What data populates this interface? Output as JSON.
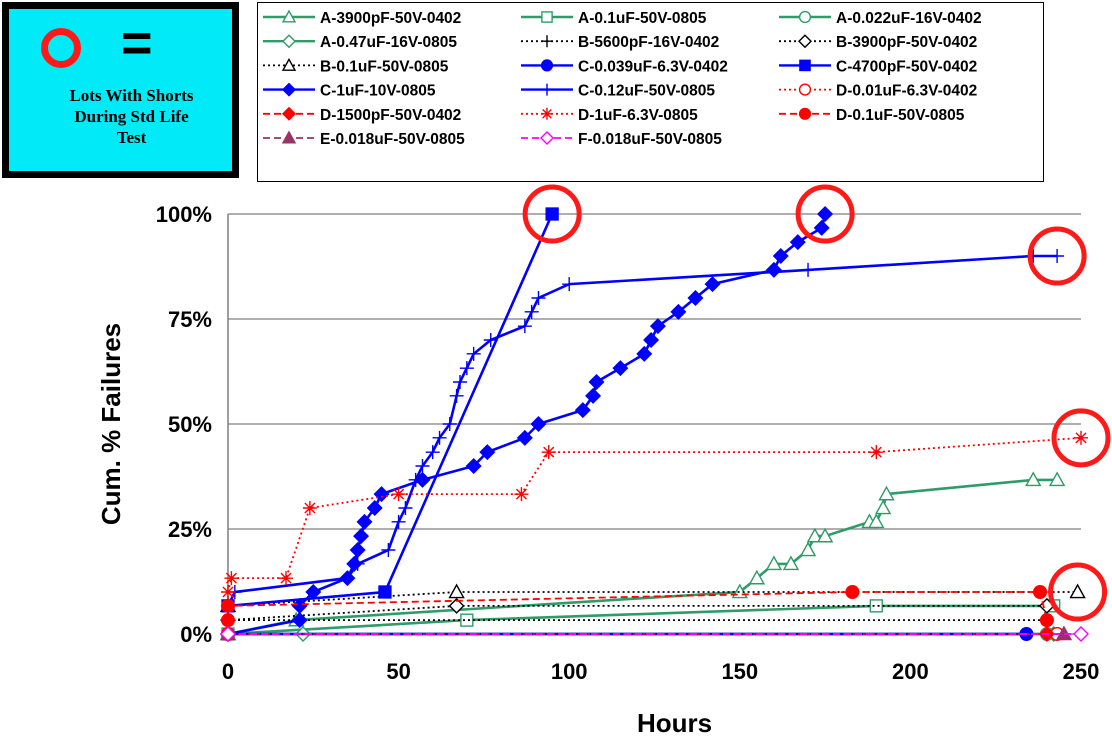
{
  "key": {
    "symbol": "circle-outline",
    "equals": "=",
    "text": "Lots With Shorts During Std Life Test",
    "symbol_color": "#ff1a1a",
    "bg_color": "#00eaf7"
  },
  "chart_data": {
    "type": "line",
    "xlabel": "Hours",
    "ylabel": "Cum. % Failures",
    "xlim": [
      0,
      250
    ],
    "ylim": [
      0,
      100
    ],
    "xticks": [
      "0",
      "50",
      "100",
      "150",
      "200",
      "250"
    ],
    "yticks": [
      "0%",
      "25%",
      "50%",
      "75%",
      "100%"
    ],
    "grid": "horizontal",
    "legend_position": "top",
    "highlight_circles": [
      {
        "x": 95,
        "y": 100
      },
      {
        "x": 175,
        "y": 100
      },
      {
        "x": 243,
        "y": 90
      },
      {
        "x": 250,
        "y": 46.7
      },
      {
        "x": 249,
        "y": 10
      }
    ],
    "series": [
      {
        "name": "A-3900pF-50V-0402",
        "color": "#2e9c68",
        "dash": "solid",
        "marker": "triangle-open",
        "points": [
          [
            0,
            0
          ],
          [
            20,
            3.3
          ],
          [
            150,
            10
          ],
          [
            155,
            13.3
          ],
          [
            160,
            16.7
          ],
          [
            165,
            16.7
          ],
          [
            170,
            20
          ],
          [
            172,
            23.3
          ],
          [
            175,
            23.3
          ],
          [
            188,
            26.7
          ],
          [
            190,
            26.7
          ],
          [
            192,
            30
          ],
          [
            193,
            33.3
          ],
          [
            236,
            36.7
          ],
          [
            243,
            36.7
          ]
        ]
      },
      {
        "name": "A-0.1uF-50V-0805",
        "color": "#2e9c68",
        "dash": "solid",
        "marker": "square-open",
        "points": [
          [
            0,
            0
          ],
          [
            70,
            3.3
          ],
          [
            190,
            6.7
          ],
          [
            242,
            6.7
          ]
        ]
      },
      {
        "name": "A-0.022uF-16V-0402",
        "color": "#2e9c68",
        "dash": "solid",
        "marker": "circle-open",
        "points": [
          [
            0,
            0
          ],
          [
            240,
            0
          ]
        ]
      },
      {
        "name": "A-0.47uF-16V-0805",
        "color": "#2e9c68",
        "dash": "solid",
        "marker": "diamond-open",
        "points": [
          [
            0,
            0
          ],
          [
            22,
            0
          ],
          [
            242,
            0
          ]
        ]
      },
      {
        "name": "B-5600pF-16V-0402",
        "color": "#000000",
        "dash": "dotted",
        "marker": "plus",
        "points": [
          [
            0,
            3.3
          ],
          [
            240,
            3.3
          ]
        ]
      },
      {
        "name": "B-3900pF-50V-0402",
        "color": "#000000",
        "dash": "dotted",
        "marker": "diamond-open",
        "points": [
          [
            0,
            3.3
          ],
          [
            67,
            6.7
          ],
          [
            240,
            6.7
          ]
        ]
      },
      {
        "name": "B-0.1uF-50V-0805",
        "color": "#000000",
        "dash": "dotted",
        "marker": "triangle-open",
        "points": [
          [
            0,
            6.7
          ],
          [
            67,
            10
          ],
          [
            249,
            10
          ]
        ]
      },
      {
        "name": "C-0.039uF-6.3V-0402",
        "color": "#0000ff",
        "dash": "solid",
        "marker": "circle",
        "points": [
          [
            0,
            0
          ],
          [
            234,
            0
          ]
        ]
      },
      {
        "name": "C-4700pF-50V-0402",
        "color": "#0000ff",
        "dash": "solid",
        "marker": "square",
        "points": [
          [
            0,
            6.7
          ],
          [
            46,
            10
          ],
          [
            95,
            100
          ]
        ]
      },
      {
        "name": "C-1uF-10V-0805",
        "color": "#0000ff",
        "dash": "solid",
        "marker": "diamond",
        "points": [
          [
            0,
            0
          ],
          [
            21,
            3.3
          ],
          [
            21,
            6.7
          ],
          [
            25,
            10
          ],
          [
            35,
            13.3
          ],
          [
            37,
            16.7
          ],
          [
            38,
            20
          ],
          [
            39,
            23.3
          ],
          [
            40,
            26.7
          ],
          [
            43,
            30
          ],
          [
            45,
            33.3
          ],
          [
            57,
            36.7
          ],
          [
            72,
            40
          ],
          [
            76,
            43.3
          ],
          [
            87,
            46.7
          ],
          [
            91,
            50
          ],
          [
            104,
            53.3
          ],
          [
            107,
            56.7
          ],
          [
            108,
            60
          ],
          [
            115,
            63.3
          ],
          [
            122,
            66.7
          ],
          [
            124,
            70
          ],
          [
            126,
            73.3
          ],
          [
            132,
            76.7
          ],
          [
            137,
            80
          ],
          [
            142,
            83.3
          ],
          [
            160,
            86.7
          ],
          [
            162,
            90
          ],
          [
            167,
            93.3
          ],
          [
            174,
            96.7
          ],
          [
            175,
            100
          ]
        ]
      },
      {
        "name": "C-0.12uF-50V-0805",
        "color": "#0000ff",
        "dash": "solid",
        "marker": "plus",
        "points": [
          [
            0,
            6.7
          ],
          [
            2,
            10
          ],
          [
            35,
            13.3
          ],
          [
            38,
            16.7
          ],
          [
            47,
            20
          ],
          [
            50,
            26.7
          ],
          [
            52,
            30
          ],
          [
            55,
            36.7
          ],
          [
            57,
            40
          ],
          [
            60,
            43.3
          ],
          [
            62,
            46.7
          ],
          [
            65,
            50
          ],
          [
            67,
            56.7
          ],
          [
            68,
            60
          ],
          [
            70,
            63.3
          ],
          [
            72,
            66.7
          ],
          [
            77,
            70
          ],
          [
            87,
            73.3
          ],
          [
            89,
            76.7
          ],
          [
            91,
            80
          ],
          [
            100,
            83.3
          ],
          [
            170,
            86.7
          ],
          [
            236,
            90
          ],
          [
            243,
            90
          ]
        ]
      },
      {
        "name": "D-0.01uF-6.3V-0402",
        "color": "#ff0000",
        "dash": "dotted",
        "marker": "circle-open",
        "points": [
          [
            0,
            0
          ],
          [
            243,
            0
          ]
        ]
      },
      {
        "name": "D-1500pF-50V-0402",
        "color": "#ff0000",
        "dash": "dashed",
        "marker": "diamond",
        "points": [
          [
            0,
            0
          ],
          [
            240,
            0
          ]
        ]
      },
      {
        "name": "D-1uF-6.3V-0805",
        "color": "#ff0000",
        "dash": "dotted",
        "marker": "asterisk",
        "points": [
          [
            0,
            10
          ],
          [
            1,
            13.3
          ],
          [
            17,
            13.3
          ],
          [
            24,
            30
          ],
          [
            50,
            33.3
          ],
          [
            86,
            33.3
          ],
          [
            94,
            43.3
          ],
          [
            190,
            43.3
          ],
          [
            250,
            46.7
          ]
        ]
      },
      {
        "name": "D-0.1uF-50V-0805",
        "color": "#ff0000",
        "dash": "dashed",
        "marker": "circle",
        "points": [
          [
            0,
            3.3
          ],
          [
            0,
            6.7
          ],
          [
            183,
            10
          ],
          [
            238,
            10
          ],
          [
            240,
            3.3
          ]
        ]
      },
      {
        "name": "E-0.018uF-50V-0805",
        "color": "#993366",
        "dash": "dashed",
        "marker": "triangle",
        "points": [
          [
            0,
            0
          ],
          [
            245,
            0
          ]
        ]
      },
      {
        "name": "F-0.018uF-50V-0805",
        "color": "#ff00ff",
        "dash": "dashed",
        "marker": "diamond-open",
        "points": [
          [
            0,
            0
          ],
          [
            250,
            0
          ]
        ]
      }
    ]
  }
}
